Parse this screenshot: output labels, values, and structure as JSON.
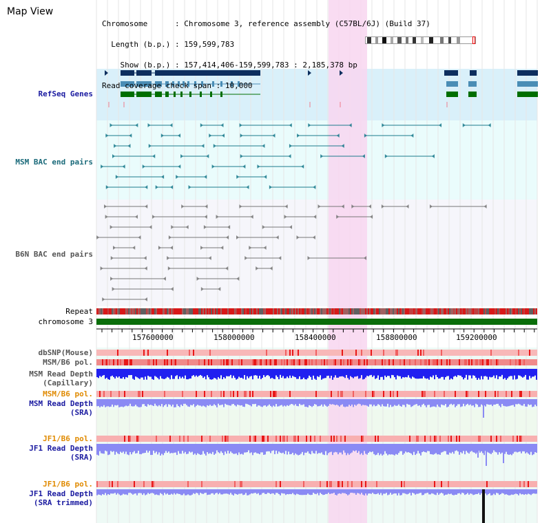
{
  "title": "Map View",
  "info": {
    "chromosome_key": "Chromosome      ",
    "chromosome_val": ": Chromosome 3, reference assembly (C57BL/6J) (Build 37)",
    "length_key": "Length (b.p.) ",
    "length_val": ": 159,599,783",
    "show_key": "Show (b.p.) ",
    "show_val": ": 157,414,406-159,599,783 : 2,185,378 bp",
    "coverage_key": "Read coverage check span ",
    "coverage_val": ": 10,000"
  },
  "tracks": {
    "refseq": "RefSeq Genes",
    "msm_bac": "MSM BAC end pairs",
    "b6n_bac": "B6N BAC end pairs",
    "repeat": "Repeat",
    "chromosome": "chromosome 3",
    "dbsnp": "dbSNP(Mouse)",
    "msm_b6_pol_1": "MSM/B6 pol.",
    "msm_depth_cap_1": "MSM Read Depth",
    "msm_depth_cap_2": "(Capillary)",
    "msm_b6_pol_2": "MSM/B6 pol.",
    "msm_depth_sra_1": "MSM Read Depth",
    "msm_depth_sra_2": "(SRA)",
    "jf1_b6_pol_1": "JF1/B6 pol.",
    "jf1_depth_sra_1": "JF1 Read Depth",
    "jf1_depth_sra_2": "(SRA)",
    "jf1_b6_pol_2": "JF1/B6 pol.",
    "jf1_depth_trim_1": "JF1 Read Depth",
    "jf1_depth_trim_2": "(SRA trimmed)"
  },
  "axis_ticks": [
    "157600000",
    "158000000",
    "158400000",
    "158800000",
    "159200000"
  ],
  "colors": {
    "refseq_bg": "#d9f0fa",
    "msm_bg": "#eafcfc",
    "b6n_bg": "#f6f6fb",
    "highlight": "#f8d6f0",
    "gene_dark": "#0d2e5e",
    "gene_mid": "#4a8db5",
    "gene_green": "#006e00",
    "msm_bac": "#1a7a8c",
    "b6n_bac": "#777777",
    "chrom_green": "#0a6e0a",
    "depth_blue": "#2020f0",
    "depth_light": "#8a8af4",
    "label_navy": "#1a1aa0",
    "label_orange": "#e08a00",
    "label_teal": "#1a6a7a"
  }
}
